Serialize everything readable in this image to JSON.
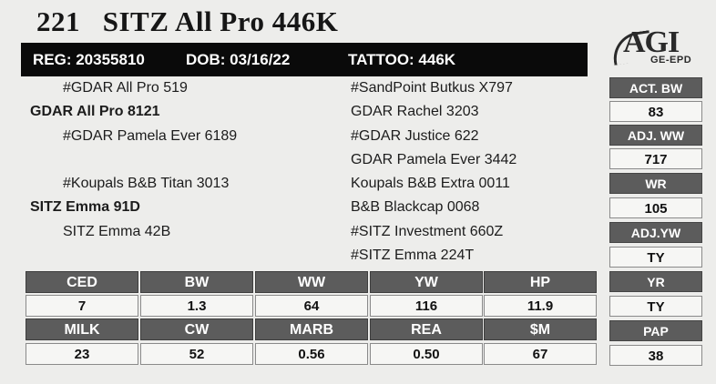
{
  "header": {
    "lot": "221",
    "name": "SITZ All Pro 446K",
    "reg": "REG: 20355810",
    "dob": "DOB: 03/16/22",
    "tattoo": "TATTOO: 446K"
  },
  "logo": {
    "main": "AGI",
    "sub": "GE-EPD"
  },
  "pedigree": {
    "sire_sire": "#GDAR All Pro 519",
    "sire": "GDAR All Pro 8121",
    "sire_dam": "#GDAR Pamela Ever 6189",
    "sire_dam_sire": "#SandPoint Butkus X797",
    "sire_dam_dam": "GDAR Rachel 3203",
    "sire_dam_2_sire": "#GDAR Justice 622",
    "sire_dam_2_dam": "GDAR Pamela Ever 3442",
    "dam_sire": "#Koupals B&B Titan 3013",
    "dam": "SITZ Emma 91D",
    "dam_dam": "SITZ Emma 42B",
    "dam_sire_sire": "Koupals B&B Extra 0011",
    "dam_sire_dam": "B&B Blackcap 0068",
    "dam_dam_sire": "#SITZ Investment 660Z",
    "dam_dam_dam": "#SITZ Emma 224T"
  },
  "right_column": [
    {
      "label": "ACT. BW",
      "value": "83"
    },
    {
      "label": "ADJ. WW",
      "value": "717"
    },
    {
      "label": "WR",
      "value": "105"
    },
    {
      "label": "ADJ.YW",
      "value": "TY"
    },
    {
      "label": "YR",
      "value": "TY"
    },
    {
      "label": "PAP",
      "value": "38"
    }
  ],
  "epd": {
    "row1_headers": [
      "CED",
      "BW",
      "WW",
      "YW",
      "HP"
    ],
    "row1_values": [
      "7",
      "1.3",
      "64",
      "116",
      "11.9"
    ],
    "row2_headers": [
      "MILK",
      "CW",
      "MARB",
      "REA",
      "$M"
    ],
    "row2_values": [
      "23",
      "52",
      "0.56",
      "0.50",
      "67"
    ]
  }
}
